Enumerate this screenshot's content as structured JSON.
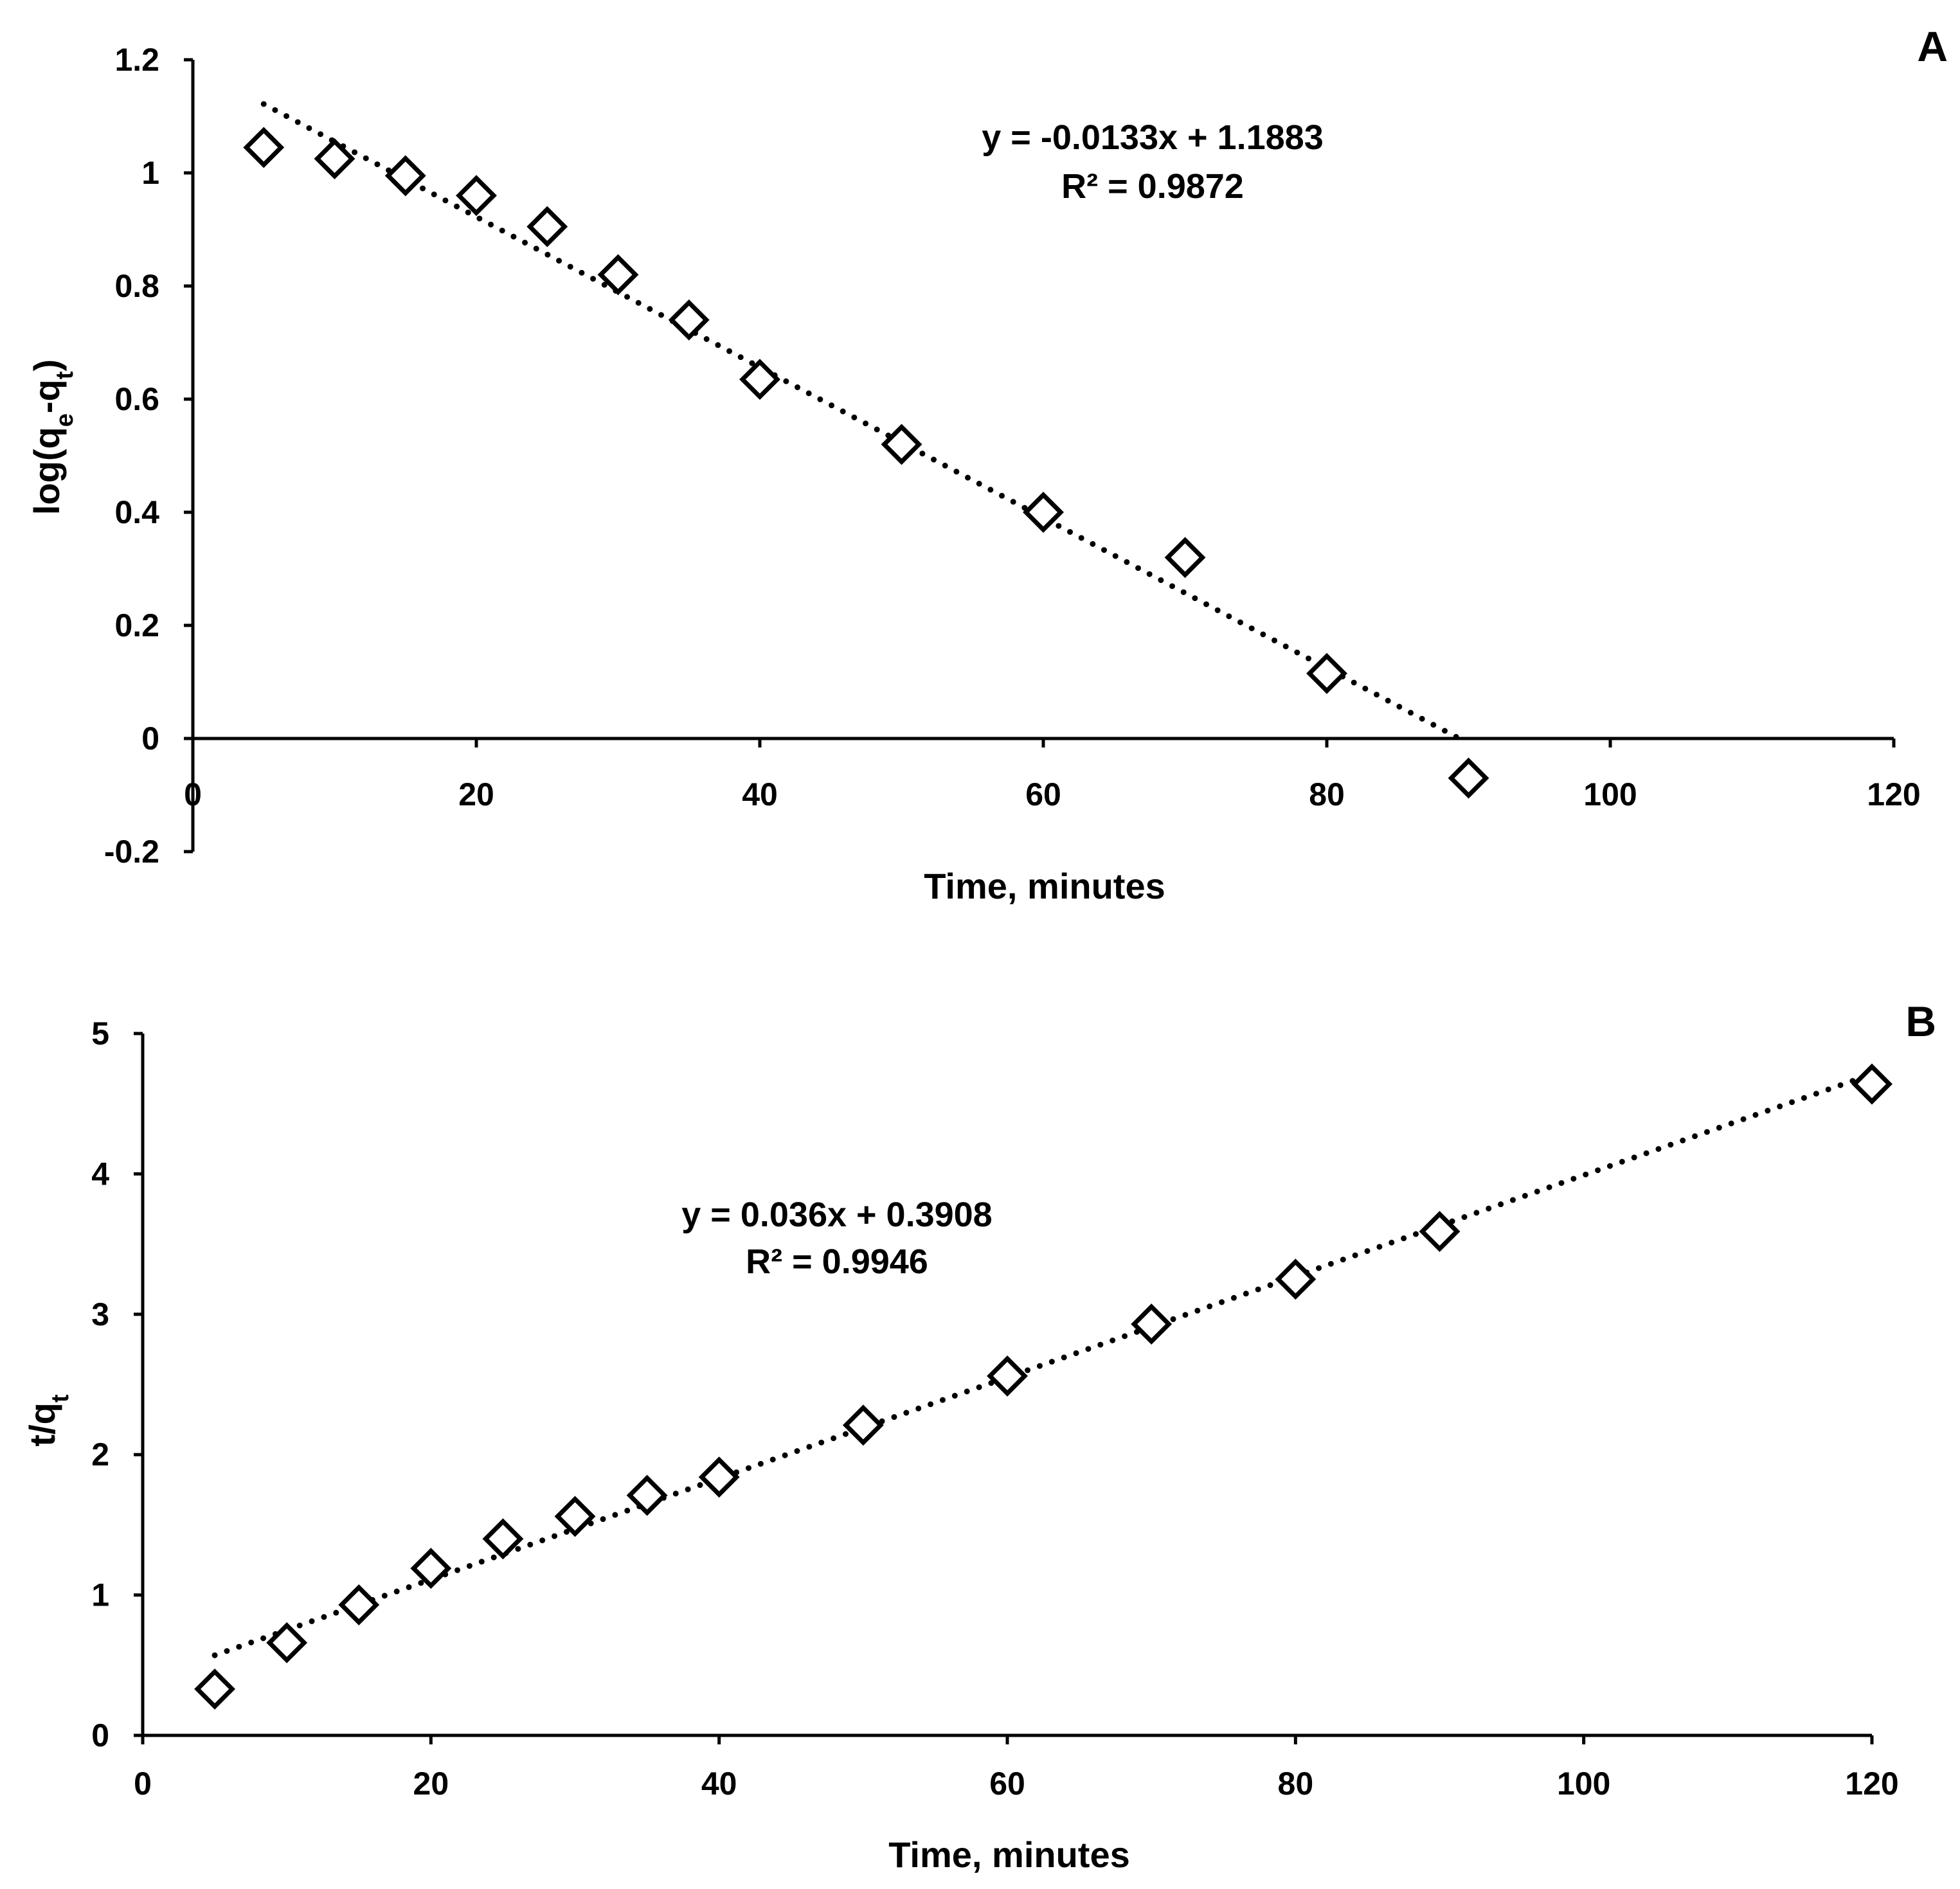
{
  "chart_data": [
    {
      "panel": "A",
      "type": "scatter",
      "xlabel": "Time, minutes",
      "ylabel": {
        "prefix": "log(q",
        "sub1": "e",
        "mid": "-q",
        "sub2": "t",
        "suffix": ")"
      },
      "xlim": [
        0,
        120
      ],
      "ylim": [
        -0.2,
        1.2
      ],
      "xticks": [
        0,
        20,
        40,
        60,
        80,
        100,
        120
      ],
      "yticks": [
        -0.2,
        0,
        0.2,
        0.4,
        0.6,
        0.8,
        1,
        1.2
      ],
      "x": [
        5,
        10,
        15,
        20,
        25,
        30,
        35,
        40,
        50,
        60,
        70,
        80,
        90
      ],
      "y": [
        1.045,
        1.025,
        0.995,
        0.96,
        0.905,
        0.82,
        0.74,
        0.635,
        0.52,
        0.4,
        0.32,
        0.115,
        -0.07
      ],
      "trendline": {
        "slope": -0.0133,
        "intercept": 1.1883,
        "x_start": 5,
        "x_end": 90
      },
      "equation": "y = -0.0133x + 1.1883",
      "r_squared": "R² = 0.9872"
    },
    {
      "panel": "B",
      "type": "scatter",
      "xlabel": "Time, minutes",
      "ylabel": {
        "prefix": "t/q",
        "sub1": "t"
      },
      "xlim": [
        0,
        120
      ],
      "ylim": [
        0,
        5
      ],
      "xticks": [
        0,
        20,
        40,
        60,
        80,
        100,
        120
      ],
      "yticks": [
        0,
        1,
        2,
        3,
        4,
        5
      ],
      "x": [
        5,
        10,
        15,
        20,
        25,
        30,
        35,
        40,
        50,
        60,
        70,
        80,
        90,
        120
      ],
      "y": [
        0.33,
        0.66,
        0.93,
        1.19,
        1.4,
        1.56,
        1.71,
        1.84,
        2.21,
        2.56,
        2.93,
        3.25,
        3.59,
        4.64
      ],
      "trendline": {
        "slope": 0.036,
        "intercept": 0.3908,
        "x_start": 5,
        "x_end": 120
      },
      "equation": "y = 0.036x + 0.3908",
      "r_squared": "R² = 0.9946"
    }
  ]
}
